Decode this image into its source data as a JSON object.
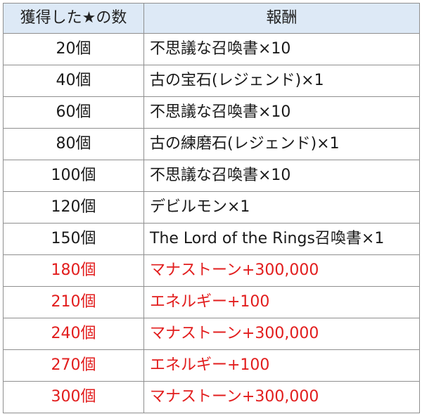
{
  "headers": {
    "stars": "獲得した★の数",
    "reward": "報酬"
  },
  "colors": {
    "header_bg": "#dde9f6",
    "normal_text": "#1a1a1a",
    "highlight_text": "#e21d1d",
    "border": "#8f8f8f"
  },
  "rows": [
    {
      "count": "20個",
      "reward": "不思議な召喚書×10",
      "highlight": false
    },
    {
      "count": "40個",
      "reward": "古の宝石(レジェンド)×1",
      "highlight": false
    },
    {
      "count": "60個",
      "reward": "不思議な召喚書×10",
      "highlight": false
    },
    {
      "count": "80個",
      "reward": "古の練磨石(レジェンド)×1",
      "highlight": false
    },
    {
      "count": "100個",
      "reward": "不思議な召喚書×10",
      "highlight": false
    },
    {
      "count": "120個",
      "reward": "デビルモン×1",
      "highlight": false
    },
    {
      "count": "150個",
      "reward": "The Lord of the Rings召喚書×1",
      "highlight": false
    },
    {
      "count": "180個",
      "reward": "マナストーン+300,000",
      "highlight": true
    },
    {
      "count": "210個",
      "reward": "エネルギー+100",
      "highlight": true
    },
    {
      "count": "240個",
      "reward": "マナストーン+300,000",
      "highlight": true
    },
    {
      "count": "270個",
      "reward": "エネルギー+100",
      "highlight": true
    },
    {
      "count": "300個",
      "reward": "マナストーン+300,000",
      "highlight": true
    }
  ]
}
